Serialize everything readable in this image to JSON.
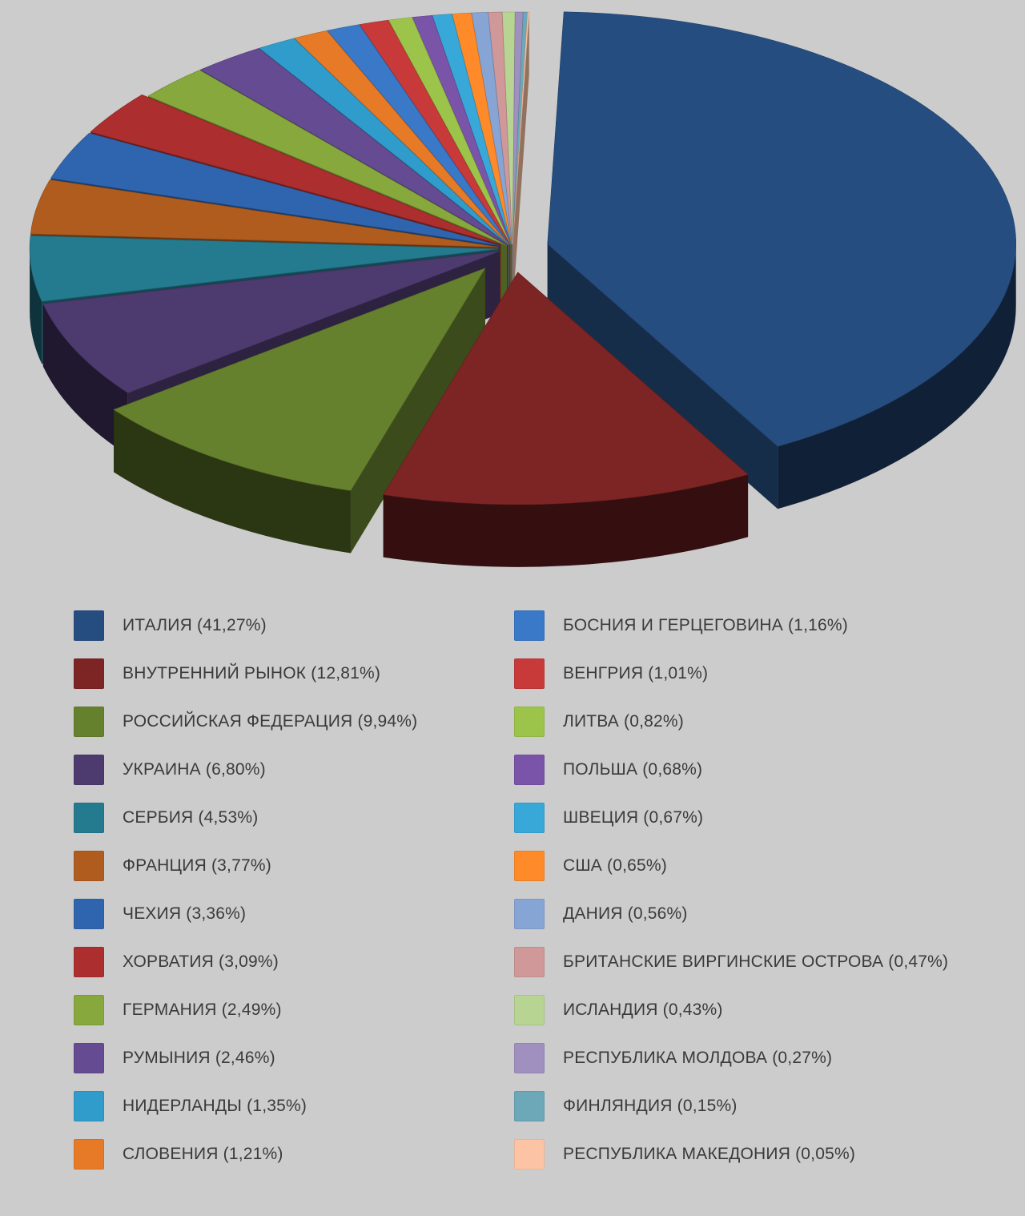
{
  "chart_data": {
    "type": "pie",
    "slices": [
      {
        "label": "ИТАЛИЯ (41,27%)",
        "value": 41.27,
        "color": "#264d80"
      },
      {
        "label": "ВНУТРЕННИЙ РЫНОК (12,81%)",
        "value": 12.81,
        "color": "#7d2424"
      },
      {
        "label": "РОССИЙСКАЯ ФЕДЕРАЦИЯ (9,94%)",
        "value": 9.94,
        "color": "#66812e"
      },
      {
        "label": "УКРАИНА (6,80%)",
        "value": 6.8,
        "color": "#4d3a6e"
      },
      {
        "label": "СЕРБИЯ (4,53%)",
        "value": 4.53,
        "color": "#247a8e"
      },
      {
        "label": "ФРАНЦИЯ (3,77%)",
        "value": 3.77,
        "color": "#b05c1e"
      },
      {
        "label": "ЧЕХИЯ (3,36%)",
        "value": 3.36,
        "color": "#2f65ae"
      },
      {
        "label": "ХОРВАТИЯ (3,09%)",
        "value": 3.09,
        "color": "#ac2e2e"
      },
      {
        "label": "ГЕРМАНИЯ (2,49%)",
        "value": 2.49,
        "color": "#86a83c"
      },
      {
        "label": "РУМЫНИЯ (2,46%)",
        "value": 2.46,
        "color": "#654b92"
      },
      {
        "label": "НИДЕРЛАНДЫ (1,35%)",
        "value": 1.35,
        "color": "#309ccb"
      },
      {
        "label": "СЛОВЕНИЯ (1,21%)",
        "value": 1.21,
        "color": "#e67a26"
      },
      {
        "label": "БОСНИЯ И ГЕРЦЕГОВИНА (1,16%)",
        "value": 1.16,
        "color": "#3a78c8"
      },
      {
        "label": "ВЕНГРИЯ (1,01%)",
        "value": 1.01,
        "color": "#c83a3a"
      },
      {
        "label": "ЛИТВА (0,82%)",
        "value": 0.82,
        "color": "#9cc44a"
      },
      {
        "label": "ПОЛЬША (0,68%)",
        "value": 0.68,
        "color": "#7a54a8"
      },
      {
        "label": "ШВЕЦИЯ (0,67%)",
        "value": 0.67,
        "color": "#38a8d8"
      },
      {
        "label": "США (0,65%)",
        "value": 0.65,
        "color": "#ff8a2a"
      },
      {
        "label": "ДАНИЯ (0,56%)",
        "value": 0.56,
        "color": "#86a4d4"
      },
      {
        "label": "БРИТАНСКИЕ ВИРГИНСКИЕ ОСТРОВА (0,47%)",
        "value": 0.47,
        "color": "#d09898"
      },
      {
        "label": "ИСЛАНДИЯ (0,43%)",
        "value": 0.43,
        "color": "#b8d492"
      },
      {
        "label": "РЕСПУБЛИКА МОЛДОВА (0,27%)",
        "value": 0.27,
        "color": "#a090c0"
      },
      {
        "label": "ФИНЛЯНДИЯ (0,15%)",
        "value": 0.15,
        "color": "#6ca8b8"
      },
      {
        "label": "РЕСПУБЛИКА МАКЕДОНИЯ (0,05%)",
        "value": 0.05,
        "color": "#fcc4a4"
      }
    ],
    "legend_placement": "bottom",
    "style": "3d-exploded"
  }
}
